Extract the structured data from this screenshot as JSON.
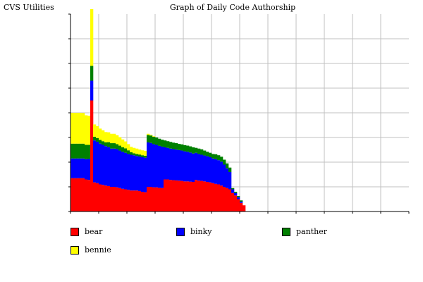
{
  "app_title": "CVS Utilities",
  "chart_data": {
    "type": "area",
    "title": "Graph of Daily Code Authorship",
    "xlabel": "",
    "ylabel": "",
    "x_tick_count": 12,
    "y_tick_count": 8,
    "ylim": [
      0,
      800
    ],
    "grid": true,
    "legend_position": "bottom",
    "stack_order": [
      "bear",
      "binky",
      "panther",
      "bennie"
    ],
    "series": [
      {
        "name": "bear",
        "color": "#ff0000",
        "values": [
          135,
          135,
          135,
          135,
          135,
          130,
          128,
          450,
          118,
          115,
          110,
          108,
          105,
          103,
          100,
          100,
          98,
          95,
          92,
          90,
          88,
          85,
          85,
          85,
          83,
          80,
          78,
          100,
          100,
          98,
          98,
          96,
          95,
          130,
          130,
          128,
          127,
          126,
          125,
          124,
          122,
          122,
          121,
          120,
          128,
          125,
          124,
          122,
          120,
          118,
          115,
          112,
          110,
          105,
          100,
          95,
          90,
          75,
          65,
          50,
          35,
          25,
          0,
          0,
          0,
          0,
          0,
          0,
          0,
          0,
          0,
          0,
          0,
          0,
          0,
          0,
          0,
          0,
          0,
          0,
          0,
          0,
          0,
          0,
          0,
          0,
          0,
          0,
          0,
          0,
          0,
          0,
          0,
          0,
          0,
          0,
          0,
          0
        ]
      },
      {
        "name": "binky",
        "color": "#0000ff",
        "values": [
          80,
          80,
          80,
          80,
          80,
          82,
          85,
          80,
          170,
          168,
          165,
          162,
          160,
          158,
          155,
          155,
          155,
          152,
          150,
          148,
          145,
          145,
          143,
          140,
          140,
          140,
          140,
          180,
          178,
          175,
          172,
          170,
          168,
          130,
          128,
          127,
          126,
          125,
          124,
          123,
          122,
          120,
          118,
          115,
          110,
          108,
          106,
          105,
          104,
          102,
          100,
          100,
          98,
          97,
          90,
          80,
          70,
          15,
          10,
          8,
          5,
          0,
          0,
          0,
          0,
          0,
          0,
          0,
          0,
          0,
          0,
          0,
          0,
          0,
          0,
          0,
          0,
          0,
          0,
          0,
          0,
          0,
          0,
          0,
          0,
          0,
          0,
          0,
          0,
          0,
          0,
          0,
          0,
          0,
          0,
          0,
          0,
          0
        ]
      },
      {
        "name": "panther",
        "color": "#008000",
        "values": [
          60,
          60,
          60,
          60,
          60,
          58,
          57,
          60,
          15,
          15,
          15,
          15,
          15,
          20,
          22,
          22,
          20,
          20,
          18,
          18,
          15,
          10,
          8,
          8,
          8,
          8,
          8,
          30,
          30,
          30,
          30,
          29,
          28,
          28,
          27,
          27,
          26,
          26,
          25,
          25,
          25,
          25,
          25,
          25,
          20,
          22,
          22,
          20,
          18,
          18,
          18,
          20,
          20,
          20,
          20,
          20,
          18,
          5,
          5,
          5,
          5,
          0,
          0,
          0,
          0,
          0,
          0,
          0,
          0,
          0,
          0,
          0,
          0,
          0,
          0,
          0,
          0,
          0,
          0,
          0,
          0,
          0,
          0,
          0,
          0,
          0,
          0,
          0,
          0,
          0,
          0,
          0,
          0,
          0,
          0,
          0,
          0,
          0
        ]
      },
      {
        "name": "bennie",
        "color": "#ffff00",
        "values": [
          125,
          125,
          125,
          125,
          124,
          120,
          118,
          230,
          50,
          48,
          46,
          44,
          42,
          40,
          38,
          38,
          36,
          34,
          32,
          28,
          25,
          22,
          22,
          22,
          20,
          20,
          20,
          5,
          3,
          2,
          0,
          0,
          0,
          0,
          0,
          0,
          0,
          0,
          0,
          0,
          0,
          0,
          0,
          0,
          0,
          0,
          0,
          0,
          0,
          0,
          0,
          0,
          0,
          0,
          0,
          0,
          0,
          0,
          0,
          0,
          0,
          0,
          0,
          0,
          0,
          0,
          0,
          0,
          0,
          0,
          0,
          0,
          0,
          0,
          0,
          0,
          0,
          0,
          0,
          0,
          0,
          0,
          0,
          0,
          0,
          0,
          0,
          0,
          0,
          0,
          0,
          0,
          0,
          0,
          0,
          0,
          0,
          0
        ]
      }
    ]
  }
}
